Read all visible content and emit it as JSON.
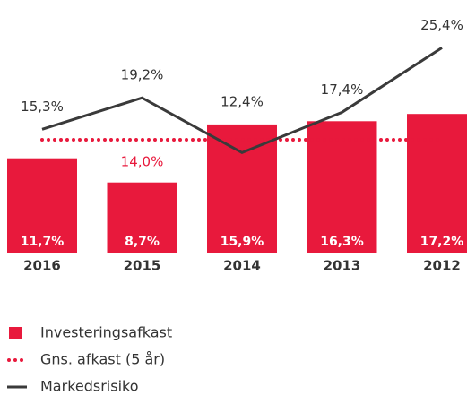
{
  "chart_data": {
    "type": "bar",
    "categories": [
      "2016",
      "2015",
      "2014",
      "2013",
      "2012"
    ],
    "series": [
      {
        "name": "Investeringsafkast",
        "type": "bar",
        "color": "#e8193c",
        "values": [
          11.7,
          8.7,
          15.9,
          16.3,
          17.2
        ],
        "value_labels": [
          "11,7%",
          "8,7%",
          "15,9%",
          "16,3%",
          "17,2%"
        ]
      },
      {
        "name": "Markedsrisiko",
        "type": "line",
        "color": "#3a3a3a",
        "values": [
          15.3,
          19.2,
          12.4,
          17.4,
          25.4
        ],
        "value_labels": [
          "15,3%",
          "19,2%",
          "12,4%",
          "17,4%",
          "25,4%"
        ]
      }
    ],
    "reference_line": {
      "name": "Gns. afkast (5 år)",
      "color": "#e8193c",
      "value": 14.0,
      "value_label": "14,0%"
    },
    "ylim": [
      0,
      30
    ]
  }
}
